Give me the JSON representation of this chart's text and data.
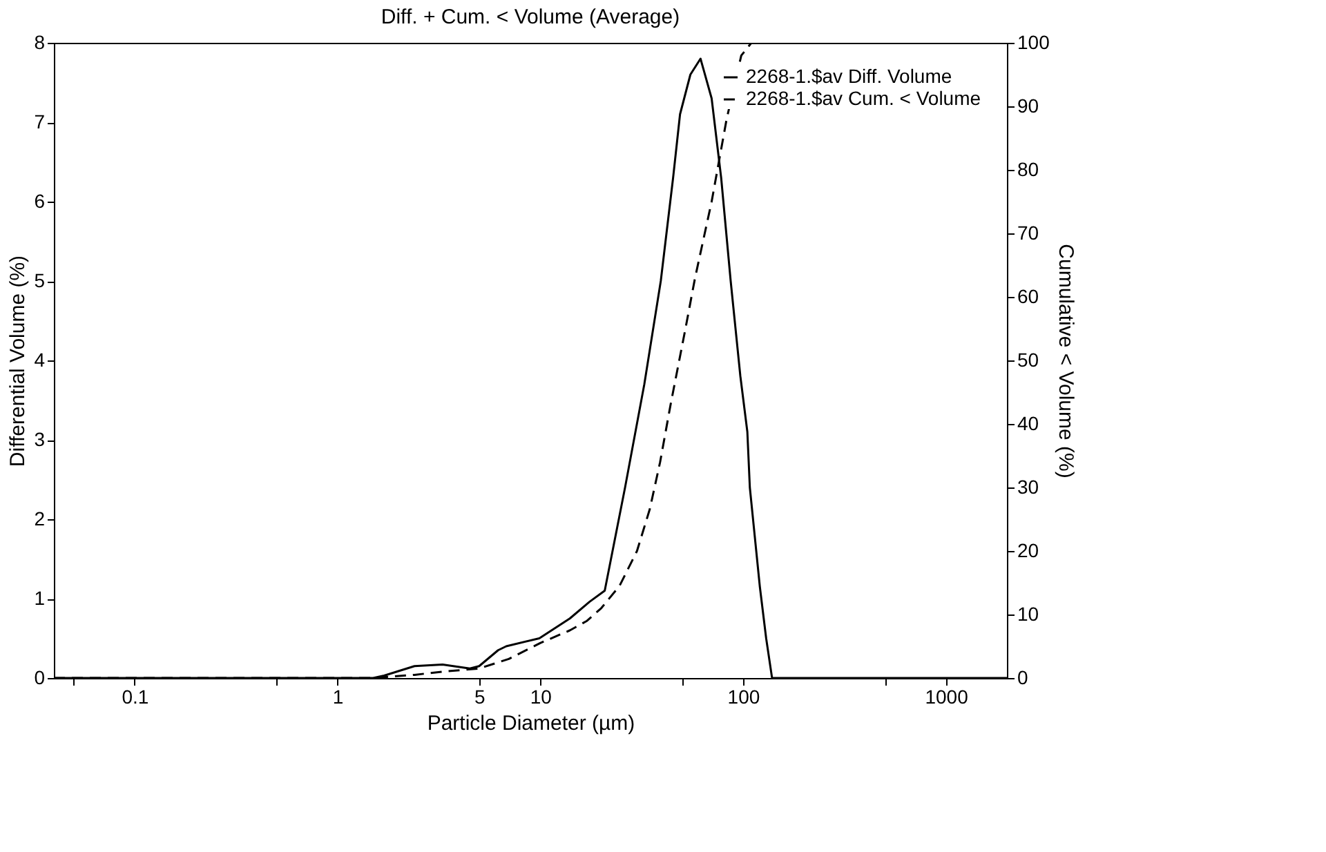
{
  "chart_data": {
    "type": "line",
    "title": "Diff. + Cum. < Volume (Average)",
    "xlabel": "Particle Diameter (µm)",
    "ylabel": "Differential Volume (%)",
    "y2label": "Cumulative < Volume (%)",
    "log": "x",
    "xlim": [
      0.04,
      2000
    ],
    "xticks": [
      {
        "value": 0.05,
        "label": null
      },
      0.1,
      {
        "value": 0.5,
        "label": null
      },
      1,
      5,
      10,
      {
        "value": 50,
        "label": null
      },
      100,
      {
        "value": 500,
        "label": null
      },
      1000
    ],
    "ylim": [
      0,
      8
    ],
    "yticks": [
      0,
      1,
      2,
      3,
      4,
      5,
      6,
      7,
      8
    ],
    "y2lim": [
      0,
      100
    ],
    "y2ticks": [
      0,
      10,
      20,
      30,
      40,
      50,
      60,
      70,
      80,
      90,
      100
    ],
    "legend": "top right",
    "grid": false,
    "marker": "none",
    "series": [
      {
        "name": "2268-1.$av Diff. Volume",
        "color": "#000000",
        "line_style": "solid",
        "x": [
          0.04,
          0.1,
          0.5,
          1,
          1.5,
          1.7,
          2.4,
          3.3,
          4.5,
          5,
          6.2,
          6.8,
          9.9,
          14,
          17.5,
          20.8,
          26.2,
          32.6,
          39.3,
          45.2,
          48.9,
          55,
          61.7,
          70,
          78,
          86.9,
          97,
          105,
          108,
          121,
          130,
          139,
          200,
          500,
          2000
        ],
        "values": [
          0,
          0,
          0,
          0,
          0,
          0.03,
          0.15,
          0.17,
          0.12,
          0.15,
          0.35,
          0.4,
          0.5,
          0.75,
          0.96,
          1.1,
          2.4,
          3.7,
          5.0,
          6.3,
          7.1,
          7.6,
          7.8,
          7.3,
          6.3,
          5.0,
          3.8,
          3.1,
          2.4,
          1.15,
          0.5,
          0,
          0,
          0,
          0
        ]
      },
      {
        "name": "2268-1.$av Cum. < Volume",
        "color": "#000000",
        "line_style": "dashed",
        "axis": "y2",
        "x": [
          0.04,
          1,
          1.5,
          2.4,
          3.3,
          5,
          7,
          10,
          14,
          17,
          20,
          24.6,
          30,
          34.7,
          39,
          43.9,
          52,
          58,
          70,
          83,
          98,
          110,
          150,
          500,
          2000
        ],
        "values": [
          0,
          0,
          0,
          0.5,
          1,
          1.5,
          3,
          5.5,
          7.5,
          9,
          11,
          14.5,
          20,
          26.6,
          34,
          43,
          55,
          63,
          75,
          88,
          98,
          100,
          100,
          100,
          100
        ]
      }
    ]
  }
}
